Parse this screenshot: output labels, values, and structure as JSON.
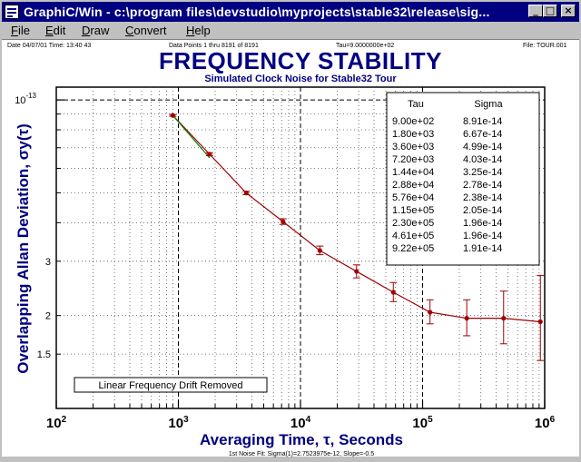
{
  "window": {
    "title": "GraphiC/Win - c:\\program files\\devstudio\\myprojects\\stable32\\release\\sig...",
    "controls": {
      "minimize": "_",
      "maximize": "□",
      "close": "×"
    }
  },
  "menu": {
    "items": [
      {
        "first": "F",
        "rest": "ile"
      },
      {
        "first": "E",
        "rest": "dit"
      },
      {
        "first": "D",
        "rest": "raw"
      },
      {
        "first": "C",
        "rest": "onvert"
      },
      {
        "first": "H",
        "rest": "elp"
      }
    ]
  },
  "header": {
    "date": "Date  04/07/01  Time: 13:40 43",
    "points": "Data Points 1 thru 8191 of 8191",
    "tau": "Tau=9.0000000e+02",
    "file": "File: TOUR.001"
  },
  "footer": {
    "note": "1st Noise Fit: Sigma(1)=2.7523975e-12, Slope=-0.5"
  },
  "chart_data": {
    "type": "scatter",
    "title": "FREQUENCY STABILITY",
    "subtitle": "Simulated Clock Noise for Stable32 Tour",
    "xlabel": "Averaging Time, τ, Seconds",
    "ylabel": "Overlapping Allan Deviation, σy(τ)",
    "x_scale": "log",
    "y_scale": "log",
    "xlim": [
      100,
      1000000
    ],
    "ylim": [
      1e-14,
      1.1e-13
    ],
    "x_ticks": [
      {
        "value": 100,
        "base": "10",
        "exp": "2"
      },
      {
        "value": 1000,
        "base": "10",
        "exp": "3"
      },
      {
        "value": 10000,
        "base": "10",
        "exp": "4"
      },
      {
        "value": 100000,
        "base": "10",
        "exp": "5"
      },
      {
        "value": 1000000,
        "base": "10",
        "exp": "6"
      }
    ],
    "y_ticks": [
      {
        "value": 1.5e-14,
        "label": "1.5"
      },
      {
        "value": 2e-14,
        "label": "2"
      },
      {
        "value": 3e-14,
        "label": "3"
      },
      {
        "value": 1e-13,
        "label": "10",
        "exp": "-13"
      }
    ],
    "grid": true,
    "legend_position": "top-right",
    "table_headers": [
      "Tau",
      "Sigma"
    ],
    "series": [
      {
        "tau_labels": [
          "9.00e+02",
          "1.80e+03",
          "3.60e+03",
          "7.20e+03",
          "1.44e+04",
          "2.88e+04",
          "5.76e+04",
          "1.15e+05",
          "2.30e+05",
          "4.61e+05",
          "9.22e+05"
        ],
        "sigma_labels": [
          "8.91e-14",
          "6.67e-14",
          "4.99e-14",
          "4.03e-14",
          "3.25e-14",
          "2.78e-14",
          "2.38e-14",
          "2.05e-14",
          "1.96e-14",
          "1.96e-14",
          "1.91e-14"
        ],
        "x": [
          900,
          1800,
          3600,
          7200,
          14400,
          28800,
          57600,
          115000,
          230000,
          461000,
          922000
        ],
        "y": [
          8.91e-14,
          6.67e-14,
          4.99e-14,
          4.03e-14,
          3.25e-14,
          2.78e-14,
          2.38e-14,
          2.05e-14,
          1.96e-14,
          1.96e-14,
          1.91e-14
        ],
        "err_low": [
          8.85e-14,
          6.6e-14,
          4.93e-14,
          3.95e-14,
          3.15e-14,
          2.65e-14,
          2.22e-14,
          1.88e-14,
          1.72e-14,
          1.62e-14,
          1.43e-14
        ],
        "err_high": [
          8.97e-14,
          6.74e-14,
          5.06e-14,
          4.12e-14,
          3.36e-14,
          2.92e-14,
          2.56e-14,
          2.25e-14,
          2.25e-14,
          2.4e-14,
          2.7e-14
        ],
        "color": "#a00000"
      }
    ],
    "fit_line": {
      "x": [
        900,
        1800
      ],
      "y": [
        8.91e-14,
        6.49e-14
      ],
      "color": "#008000"
    },
    "annotation": "Linear Frequency Drift Removed",
    "colors": {
      "title": "#000080",
      "axes": "#000000",
      "points": "#a00000"
    }
  }
}
